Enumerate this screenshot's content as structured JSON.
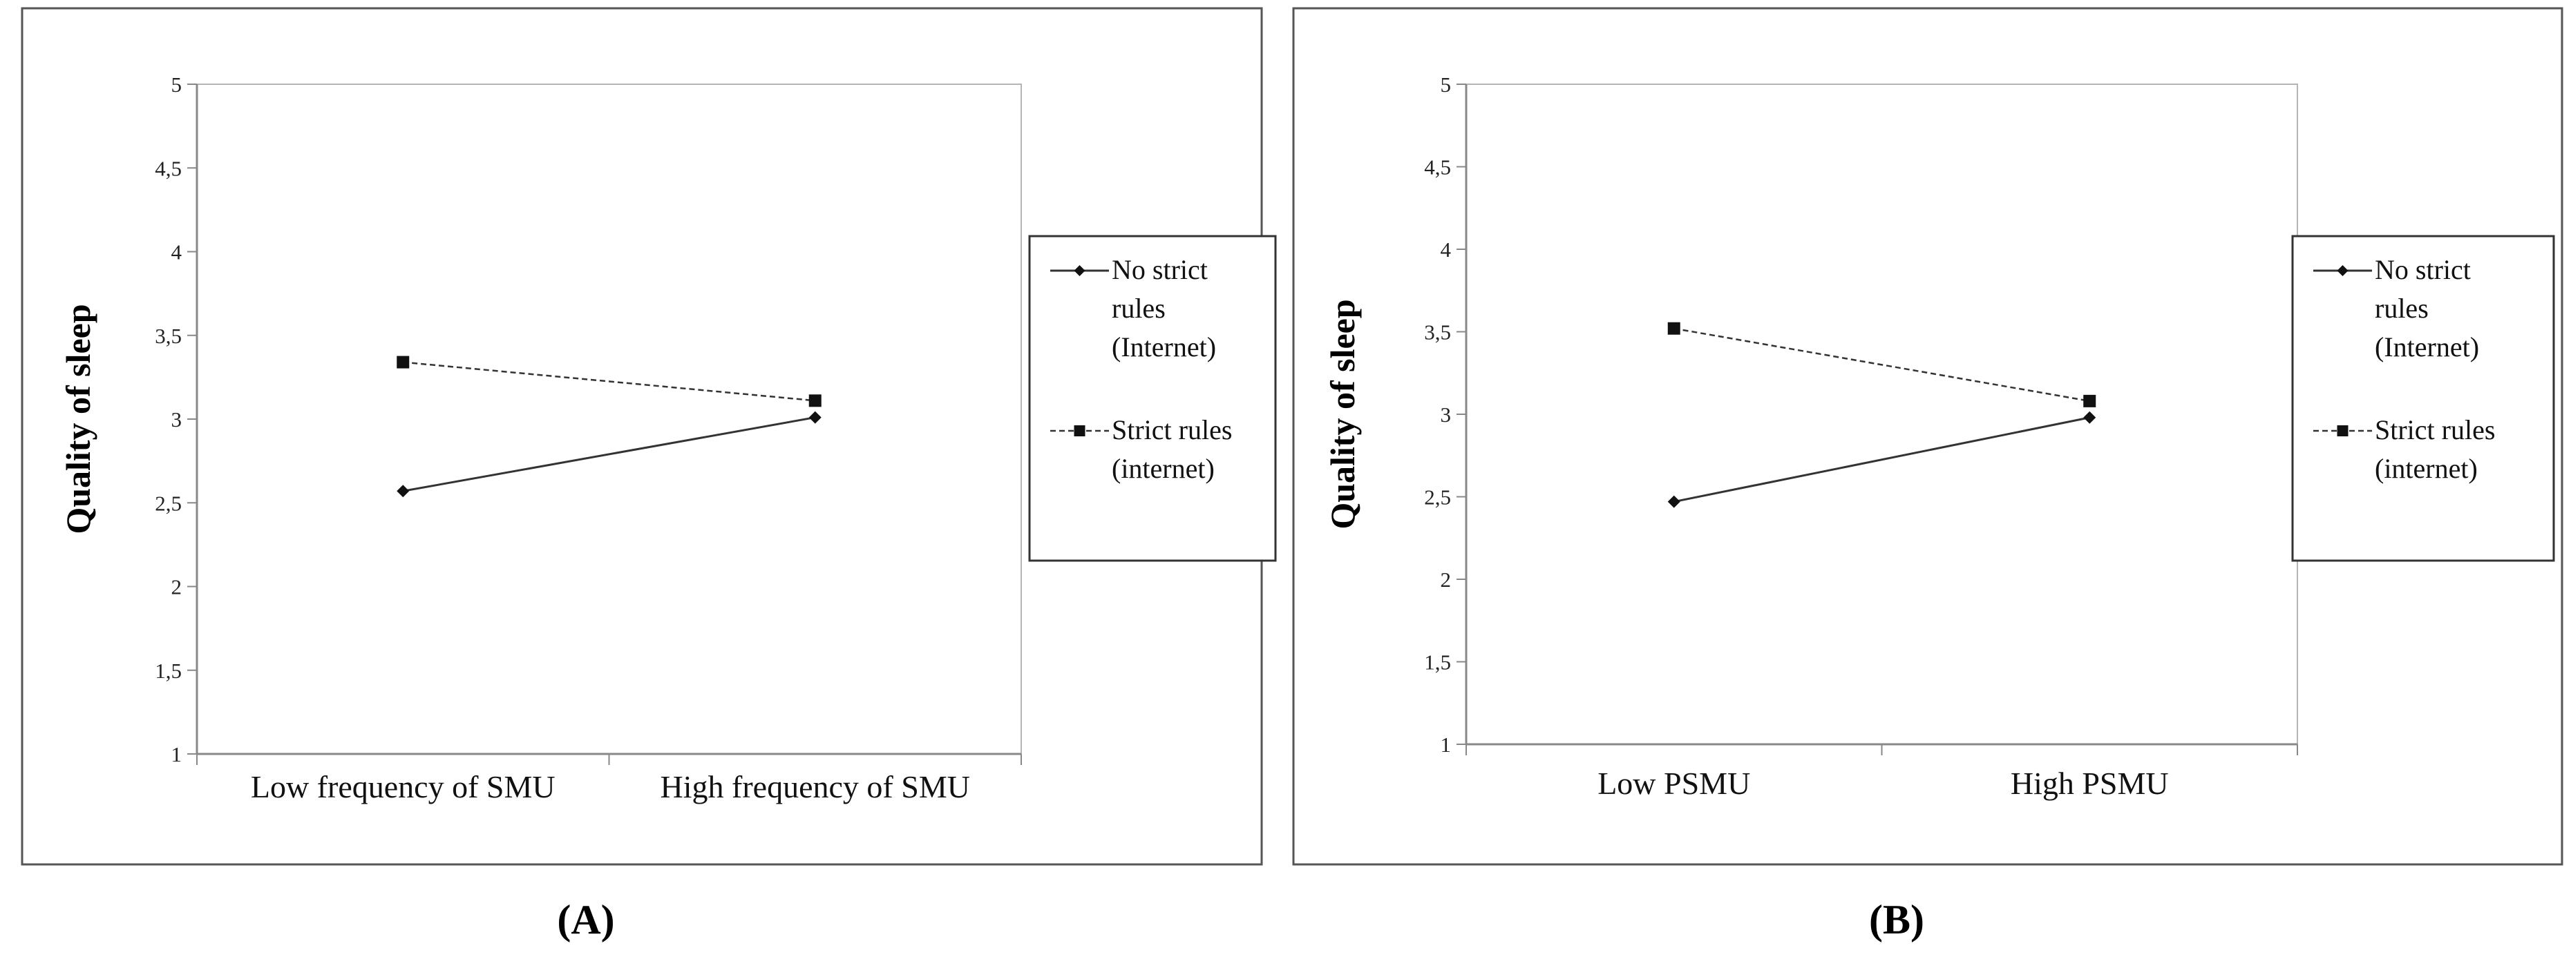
{
  "chart_data": [
    {
      "type": "line",
      "panel_label": "(A)",
      "categories": [
        "Low frequency of SMU",
        "High frequency of SMU"
      ],
      "ylabel": "Quality of sleep",
      "ylim": [
        1,
        5
      ],
      "yticks": [
        "1",
        "1,5",
        "2",
        "2,5",
        "3",
        "3,5",
        "4",
        "4,5",
        "5"
      ],
      "grid": false,
      "legend_position": "right",
      "series": [
        {
          "name": "No strict rules (Internet)",
          "legend_lines": [
            "No strict",
            "rules",
            "(Internet)"
          ],
          "values": [
            2.57,
            3.01
          ],
          "line_style": "solid",
          "marker": "diamond",
          "color": "#333333"
        },
        {
          "name": "Strict rules (internet)",
          "legend_lines": [
            "Strict rules",
            "(internet)"
          ],
          "values": [
            3.34,
            3.11
          ],
          "line_style": "dashed",
          "marker": "square",
          "color": "#333333"
        }
      ]
    },
    {
      "type": "line",
      "panel_label": "(B)",
      "categories": [
        "Low PSMU",
        "High PSMU"
      ],
      "ylabel": "Quality of sleep",
      "ylim": [
        1,
        5
      ],
      "yticks": [
        "1",
        "1,5",
        "2",
        "2,5",
        "3",
        "3,5",
        "4",
        "4,5",
        "5"
      ],
      "grid": false,
      "legend_position": "right",
      "series": [
        {
          "name": "No strict rules (Internet)",
          "legend_lines": [
            "No strict",
            "rules",
            "(Internet)"
          ],
          "values": [
            2.47,
            2.98
          ],
          "line_style": "solid",
          "marker": "diamond",
          "color": "#333333"
        },
        {
          "name": "Strict rules (internet)",
          "legend_lines": [
            "Strict rules",
            "(internet)"
          ],
          "values": [
            3.52,
            3.08
          ],
          "line_style": "dashed",
          "marker": "square",
          "color": "#333333"
        }
      ]
    }
  ]
}
